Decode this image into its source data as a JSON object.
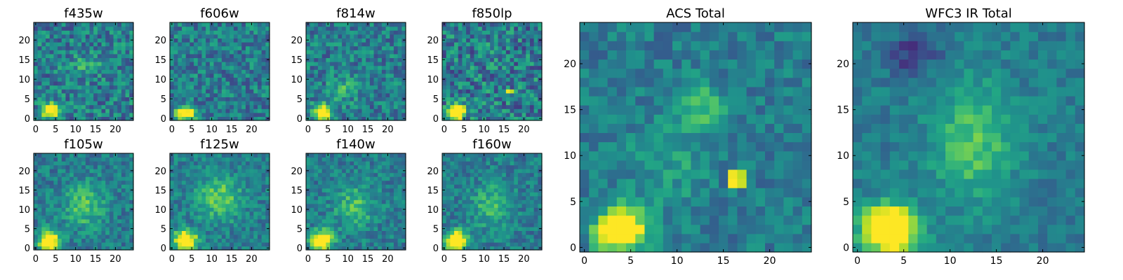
{
  "figure": {
    "colormap": "viridis",
    "grid_size": 25
  },
  "chart_data": [
    {
      "type": "heatmap",
      "title": "f435w",
      "xlabel": "",
      "ylabel": "",
      "xlim": [
        0,
        25
      ],
      "ylim": [
        0,
        25
      ],
      "xticks": [
        0,
        5,
        10,
        15,
        20
      ],
      "yticks": [
        0,
        5,
        10,
        15,
        20
      ],
      "noise": 0.22,
      "seed": 11,
      "features": [
        {
          "kind": "blob",
          "cx": 3.5,
          "cy": 2.0,
          "sx": 1.4,
          "sy": 1.2,
          "amp": 0.95
        },
        {
          "kind": "blob",
          "cx": 12.5,
          "cy": 14.0,
          "sx": 3.0,
          "sy": 2.0,
          "amp": 0.15
        }
      ]
    },
    {
      "type": "heatmap",
      "title": "f606w",
      "xlabel": "",
      "ylabel": "",
      "xlim": [
        0,
        25
      ],
      "ylim": [
        0,
        25
      ],
      "xticks": [
        0,
        5,
        10,
        15,
        20
      ],
      "yticks": [
        0,
        5,
        10,
        15,
        20
      ],
      "noise": 0.2,
      "seed": 23,
      "features": [
        {
          "kind": "blob",
          "cx": 3.5,
          "cy": 1.5,
          "sx": 1.6,
          "sy": 1.3,
          "amp": 0.8
        }
      ]
    },
    {
      "type": "heatmap",
      "title": "f814w",
      "xlabel": "",
      "ylabel": "",
      "xlim": [
        0,
        25
      ],
      "ylim": [
        0,
        25
      ],
      "xticks": [
        0,
        5,
        10,
        15,
        20
      ],
      "yticks": [
        0,
        5,
        10,
        15,
        20
      ],
      "noise": 0.2,
      "seed": 37,
      "features": [
        {
          "kind": "blob",
          "cx": 3.5,
          "cy": 1.5,
          "sx": 1.4,
          "sy": 1.4,
          "amp": 0.9
        },
        {
          "kind": "blob",
          "cx": 9.0,
          "cy": 8.0,
          "sx": 2.5,
          "sy": 2.5,
          "amp": 0.2
        }
      ]
    },
    {
      "type": "heatmap",
      "title": "f850lp",
      "xlabel": "",
      "ylabel": "",
      "xlim": [
        0,
        25
      ],
      "ylim": [
        0,
        25
      ],
      "xticks": [
        0,
        5,
        10,
        15,
        20
      ],
      "yticks": [
        0,
        5,
        10,
        15,
        20
      ],
      "noise": 0.25,
      "seed": 41,
      "features": [
        {
          "kind": "blob",
          "cx": 3.0,
          "cy": 1.5,
          "sx": 1.5,
          "sy": 1.5,
          "amp": 0.9
        },
        {
          "kind": "pixel",
          "x": 16,
          "y": 7,
          "val": 0.98
        },
        {
          "kind": "pixel",
          "x": 17,
          "y": 7,
          "val": 0.9
        }
      ]
    },
    {
      "type": "heatmap",
      "title": "f105w",
      "xlabel": "",
      "ylabel": "",
      "xlim": [
        0,
        25
      ],
      "ylim": [
        0,
        25
      ],
      "xticks": [
        0,
        5,
        10,
        15,
        20
      ],
      "yticks": [
        0,
        5,
        10,
        15,
        20
      ],
      "noise": 0.15,
      "seed": 53,
      "features": [
        {
          "kind": "blob",
          "cx": 3.5,
          "cy": 2.0,
          "sx": 1.8,
          "sy": 1.8,
          "amp": 0.9
        },
        {
          "kind": "blob",
          "cx": 12.0,
          "cy": 11.0,
          "sx": 3.5,
          "sy": 4.0,
          "amp": 0.3
        }
      ]
    },
    {
      "type": "heatmap",
      "title": "f125w",
      "xlabel": "",
      "ylabel": "",
      "xlim": [
        0,
        25
      ],
      "ylim": [
        0,
        25
      ],
      "xticks": [
        0,
        5,
        10,
        15,
        20
      ],
      "yticks": [
        0,
        5,
        10,
        15,
        20
      ],
      "noise": 0.15,
      "seed": 67,
      "features": [
        {
          "kind": "blob",
          "cx": 3.5,
          "cy": 2.0,
          "sx": 2.0,
          "sy": 1.8,
          "amp": 0.85
        },
        {
          "kind": "blob",
          "cx": 12.0,
          "cy": 13.0,
          "sx": 4.0,
          "sy": 4.0,
          "amp": 0.35
        }
      ]
    },
    {
      "type": "heatmap",
      "title": "f140w",
      "xlabel": "",
      "ylabel": "",
      "xlim": [
        0,
        25
      ],
      "ylim": [
        0,
        25
      ],
      "xticks": [
        0,
        5,
        10,
        15,
        20
      ],
      "yticks": [
        0,
        5,
        10,
        15,
        20
      ],
      "noise": 0.15,
      "seed": 79,
      "features": [
        {
          "kind": "blob",
          "cx": 3.5,
          "cy": 2.0,
          "sx": 1.8,
          "sy": 1.8,
          "amp": 0.9
        },
        {
          "kind": "blob",
          "cx": 12.0,
          "cy": 11.0,
          "sx": 3.5,
          "sy": 4.0,
          "amp": 0.28
        }
      ]
    },
    {
      "type": "heatmap",
      "title": "f160w",
      "xlabel": "",
      "ylabel": "",
      "xlim": [
        0,
        25
      ],
      "ylim": [
        0,
        25
      ],
      "xticks": [
        0,
        5,
        10,
        15,
        20
      ],
      "yticks": [
        0,
        5,
        10,
        15,
        20
      ],
      "noise": 0.15,
      "seed": 83,
      "features": [
        {
          "kind": "blob",
          "cx": 3.0,
          "cy": 2.0,
          "sx": 1.7,
          "sy": 1.7,
          "amp": 0.95
        },
        {
          "kind": "blob",
          "cx": 12.0,
          "cy": 11.0,
          "sx": 3.5,
          "sy": 4.0,
          "amp": 0.25
        }
      ]
    },
    {
      "type": "heatmap",
      "title": "ACS Total",
      "xlabel": "",
      "ylabel": "",
      "xlim": [
        0,
        25
      ],
      "ylim": [
        0,
        25
      ],
      "xticks": [
        0,
        5,
        10,
        15,
        20
      ],
      "yticks": [
        0,
        5,
        10,
        15,
        20
      ],
      "noise": 0.13,
      "seed": 97,
      "features": [
        {
          "kind": "blob",
          "cx": 4.0,
          "cy": 2.0,
          "sx": 1.8,
          "sy": 1.6,
          "amp": 1.0
        },
        {
          "kind": "blob",
          "cx": 12.5,
          "cy": 15.5,
          "sx": 1.8,
          "sy": 1.8,
          "amp": 0.3
        },
        {
          "kind": "blob",
          "cx": 9.0,
          "cy": 9.0,
          "sx": 3.0,
          "sy": 3.0,
          "amp": 0.15
        },
        {
          "kind": "pixel",
          "x": 16,
          "y": 7,
          "val": 1.0
        },
        {
          "kind": "pixel",
          "x": 16,
          "y": 8,
          "val": 0.98
        },
        {
          "kind": "pixel",
          "x": 17,
          "y": 7,
          "val": 0.92
        },
        {
          "kind": "pixel",
          "x": 17,
          "y": 8,
          "val": 0.9
        }
      ]
    },
    {
      "type": "heatmap",
      "title": "WFC3 IR Total",
      "xlabel": "",
      "ylabel": "",
      "xlim": [
        0,
        25
      ],
      "ylim": [
        0,
        25
      ],
      "xticks": [
        0,
        5,
        10,
        15,
        20
      ],
      "yticks": [
        0,
        5,
        10,
        15,
        20
      ],
      "noise": 0.1,
      "seed": 109,
      "features": [
        {
          "kind": "blob",
          "cx": 3.5,
          "cy": 2.0,
          "sx": 2.0,
          "sy": 1.8,
          "amp": 1.0
        },
        {
          "kind": "blob",
          "cx": 12.5,
          "cy": 11.5,
          "sx": 3.0,
          "sy": 4.5,
          "amp": 0.32
        },
        {
          "kind": "blob",
          "cx": 6.0,
          "cy": 21.0,
          "sx": 2.0,
          "sy": 1.5,
          "amp": -0.25
        }
      ]
    }
  ]
}
